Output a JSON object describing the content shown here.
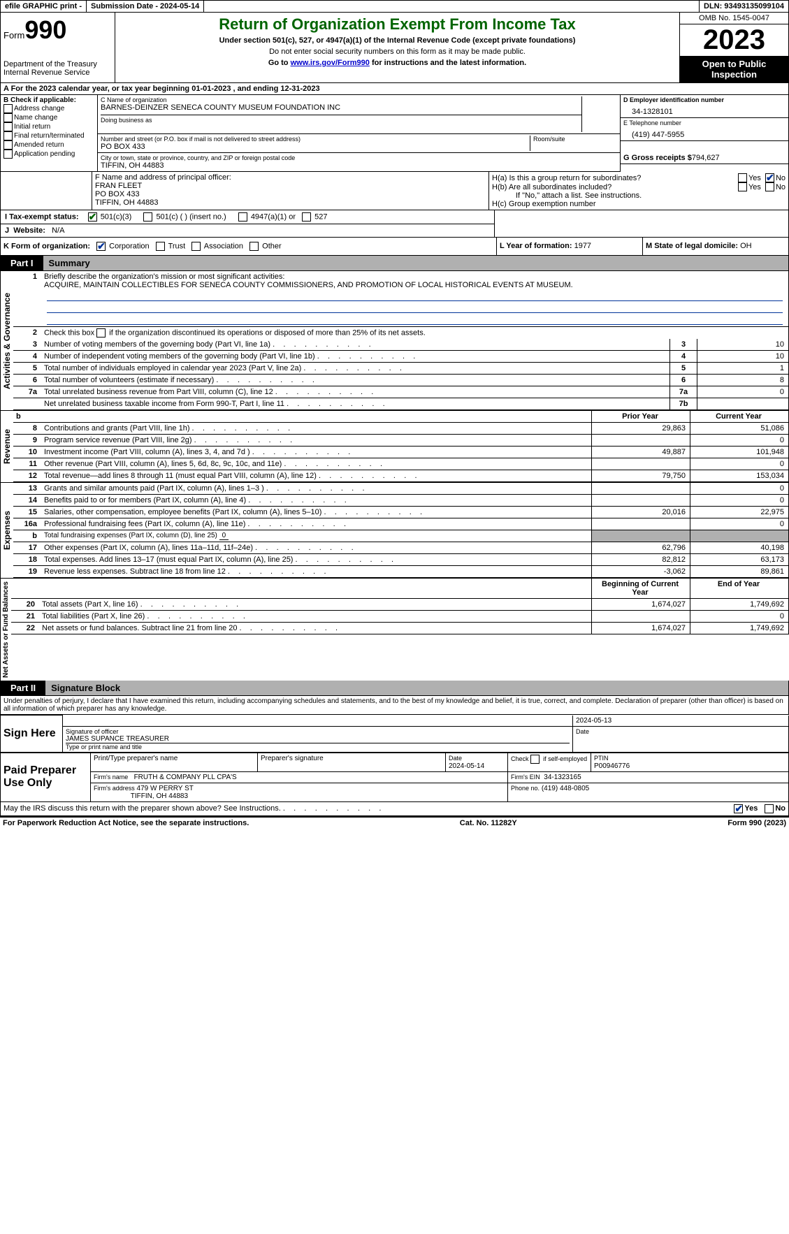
{
  "topbar": {
    "efile": "efile GRAPHIC print -",
    "submission_label": "Submission Date - 2024-05-14",
    "dln_label": "DLN:",
    "dln": "93493135099104"
  },
  "header": {
    "form_word": "Form",
    "form_num": "990",
    "dept": "Department of the Treasury\nInternal Revenue Service",
    "title": "Return of Organization Exempt From Income Tax",
    "sub1": "Under section 501(c), 527, or 4947(a)(1) of the Internal Revenue Code (except private foundations)",
    "sub2": "Do not enter social security numbers on this form as it may be made public.",
    "sub3a": "Go to ",
    "sub3_link": "www.irs.gov/Form990",
    "sub3b": " for instructions and the latest information.",
    "omb": "OMB No. 1545-0047",
    "year": "2023",
    "inspection": "Open to Public Inspection"
  },
  "line_a": {
    "prefix": "A For the 2023 calendar year, or tax year beginning ",
    "begin": "01-01-2023",
    "mid": " , and ending ",
    "end": "12-31-2023"
  },
  "box_b": {
    "title": "B Check if applicable:",
    "opts": [
      "Address change",
      "Name change",
      "Initial return",
      "Final return/terminated",
      "Amended return",
      "Application pending"
    ]
  },
  "box_c": {
    "name_label": "C Name of organization",
    "name": "BARNES-DEINZER SENECA COUNTY MUSEUM FOUNDATION INC",
    "dba_label": "Doing business as",
    "street_label": "Number and street (or P.O. box if mail is not delivered to street address)",
    "street": "PO BOX 433",
    "room_label": "Room/suite",
    "city_label": "City or town, state or province, country, and ZIP or foreign postal code",
    "city": "TIFFIN, OH  44883"
  },
  "box_d": {
    "ein_label": "D Employer identification number",
    "ein": "34-1328101",
    "phone_label": "E Telephone number",
    "phone": "(419) 447-5955",
    "receipts_label": "G Gross receipts $",
    "receipts": "794,627"
  },
  "box_f": {
    "label": "F  Name and address of principal officer:",
    "name": "FRAN FLEET",
    "addr1": "PO BOX 433",
    "addr2": "TIFFIN, OH  44883"
  },
  "box_h": {
    "a_label": "H(a)  Is this a group return for subordinates?",
    "b_label": "H(b)  Are all subordinates included?",
    "b_note": "If \"No,\" attach a list. See instructions.",
    "c_label": "H(c)  Group exemption number",
    "yes": "Yes",
    "no": "No"
  },
  "tax_status": {
    "i_label": "I  Tax-exempt status:",
    "c3": "501(c)(3)",
    "c": "501(c) (  ) (insert no.)",
    "a1": "4947(a)(1) or",
    "s527": "527"
  },
  "website": {
    "j": "J",
    "label": "Website:",
    "val": "N/A"
  },
  "box_k": {
    "label": "K Form of organization:",
    "corp": "Corporation",
    "trust": "Trust",
    "assoc": "Association",
    "other": "Other"
  },
  "box_l": {
    "label": "L Year of formation:",
    "val": "1977"
  },
  "box_m": {
    "label": "M State of legal domicile:",
    "val": "OH"
  },
  "part1": {
    "label": "Part I",
    "title": "Summary"
  },
  "summary": {
    "line1_label": "Briefly describe the organization's mission or most significant activities:",
    "line1_val": "ACQUIRE, MAINTAIN COLLECTIBLES FOR SENECA COUNTY COMMISSIONERS, AND PROMOTION OF LOCAL HISTORICAL EVENTS AT MUSEUM.",
    "line2": "Check this box       if the organization discontinued its operations or disposed of more than 25% of its net assets.",
    "rows_gov": [
      {
        "n": "3",
        "d": "Number of voting members of the governing body (Part VI, line 1a)",
        "k": "3",
        "v": "10"
      },
      {
        "n": "4",
        "d": "Number of independent voting members of the governing body (Part VI, line 1b)",
        "k": "4",
        "v": "10"
      },
      {
        "n": "5",
        "d": "Total number of individuals employed in calendar year 2023 (Part V, line 2a)",
        "k": "5",
        "v": "1"
      },
      {
        "n": "6",
        "d": "Total number of volunteers (estimate if necessary)",
        "k": "6",
        "v": "8"
      },
      {
        "n": "7a",
        "d": "Total unrelated business revenue from Part VIII, column (C), line 12",
        "k": "7a",
        "v": "0"
      },
      {
        "n": "",
        "d": "Net unrelated business taxable income from Form 990-T, Part I, line 11",
        "k": "7b",
        "v": ""
      }
    ],
    "col_headers": {
      "prior": "Prior Year",
      "current": "Current Year"
    },
    "rows_rev": [
      {
        "n": "8",
        "d": "Contributions and grants (Part VIII, line 1h)",
        "p": "29,863",
        "c": "51,086"
      },
      {
        "n": "9",
        "d": "Program service revenue (Part VIII, line 2g)",
        "p": "",
        "c": "0"
      },
      {
        "n": "10",
        "d": "Investment income (Part VIII, column (A), lines 3, 4, and 7d )",
        "p": "49,887",
        "c": "101,948"
      },
      {
        "n": "11",
        "d": "Other revenue (Part VIII, column (A), lines 5, 6d, 8c, 9c, 10c, and 11e)",
        "p": "",
        "c": "0"
      },
      {
        "n": "12",
        "d": "Total revenue—add lines 8 through 11 (must equal Part VIII, column (A), line 12)",
        "p": "79,750",
        "c": "153,034"
      }
    ],
    "rows_exp": [
      {
        "n": "13",
        "d": "Grants and similar amounts paid (Part IX, column (A), lines 1–3 )",
        "p": "",
        "c": "0"
      },
      {
        "n": "14",
        "d": "Benefits paid to or for members (Part IX, column (A), line 4)",
        "p": "",
        "c": "0"
      },
      {
        "n": "15",
        "d": "Salaries, other compensation, employee benefits (Part IX, column (A), lines 5–10)",
        "p": "20,016",
        "c": "22,975"
      },
      {
        "n": "16a",
        "d": "Professional fundraising fees (Part IX, column (A), line 11e)",
        "p": "",
        "c": "0"
      }
    ],
    "line_b": "Total fundraising expenses (Part IX, column (D), line 25)",
    "line_b_val": "0",
    "rows_exp2": [
      {
        "n": "17",
        "d": "Other expenses (Part IX, column (A), lines 11a–11d, 11f–24e)",
        "p": "62,796",
        "c": "40,198"
      },
      {
        "n": "18",
        "d": "Total expenses. Add lines 13–17 (must equal Part IX, column (A), line 25)",
        "p": "82,812",
        "c": "63,173"
      },
      {
        "n": "19",
        "d": "Revenue less expenses. Subtract line 18 from line 12",
        "p": "-3,062",
        "c": "89,861"
      }
    ],
    "col_headers2": {
      "begin": "Beginning of Current Year",
      "end": "End of Year"
    },
    "rows_net": [
      {
        "n": "20",
        "d": "Total assets (Part X, line 16)",
        "p": "1,674,027",
        "c": "1,749,692"
      },
      {
        "n": "21",
        "d": "Total liabilities (Part X, line 26)",
        "p": "",
        "c": "0"
      },
      {
        "n": "22",
        "d": "Net assets or fund balances. Subtract line 21 from line 20",
        "p": "1,674,027",
        "c": "1,749,692"
      }
    ],
    "vlabels": {
      "gov": "Activities & Governance",
      "rev": "Revenue",
      "exp": "Expenses",
      "net": "Net Assets or Fund Balances"
    }
  },
  "part2": {
    "label": "Part II",
    "title": "Signature Block",
    "perjury": "Under penalties of perjury, I declare that I have examined this return, including accompanying schedules and statements, and to the best of my knowledge and belief, it is true, correct, and complete. Declaration of preparer (other than officer) is based on all information of which preparer has any knowledge."
  },
  "sign": {
    "here": "Sign Here",
    "sig_date": "2024-05-13",
    "sig_label": "Signature of officer",
    "date_label": "Date",
    "officer": "JAMES SUPANCE  TREASURER",
    "type_label": "Type or print name and title"
  },
  "preparer": {
    "label": "Paid Preparer Use Only",
    "h1": "Print/Type preparer's name",
    "h2": "Preparer's signature",
    "h3_label": "Date",
    "h3": "2024-05-14",
    "h4_label": "Check",
    "h4_suffix": "if self-employed",
    "h5_label": "PTIN",
    "h5": "P00946776",
    "firm_name_label": "Firm's name",
    "firm_name": "FRUTH & COMPANY PLL CPA'S",
    "firm_ein_label": "Firm's EIN",
    "firm_ein": "34-1323165",
    "firm_addr_label": "Firm's address",
    "firm_addr1": "479 W PERRY ST",
    "firm_addr2": "TIFFIN, OH  44883",
    "firm_phone_label": "Phone no.",
    "firm_phone": "(419) 448-0805"
  },
  "discuss": {
    "text": "May the IRS discuss this return with the preparer shown above? See Instructions.",
    "yes": "Yes",
    "no": "No"
  },
  "footer": {
    "left": "For Paperwork Reduction Act Notice, see the separate instructions.",
    "center": "Cat. No. 11282Y",
    "right_a": "Form ",
    "right_b": "990",
    "right_c": " (2023)"
  }
}
